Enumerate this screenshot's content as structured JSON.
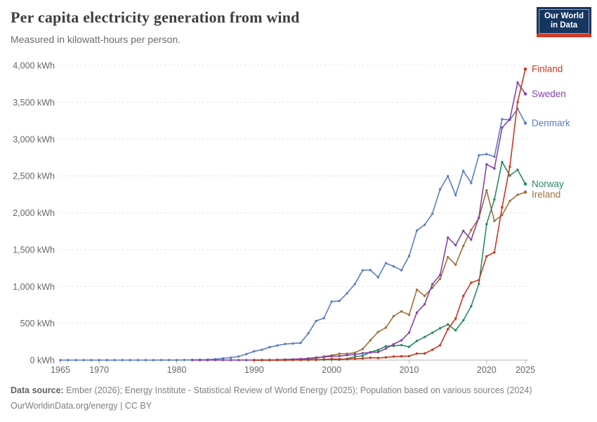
{
  "header": {
    "title": "Per capita electricity generation from wind",
    "subtitle": "Measured in kilowatt-hours per person.",
    "logo": {
      "line1": "Our World",
      "line2": "in Data",
      "bg_color": "#16355f",
      "accent_color": "#d23a2a"
    }
  },
  "chart_data": {
    "type": "line",
    "title": "Per capita electricity generation from wind",
    "ylabel": "kilowatt-hours per person",
    "xlabel": "",
    "grid": "horizontal-dashed",
    "legend_position": "end-of-line-labels-right",
    "x_range": [
      1965,
      2025
    ],
    "y_range": [
      0,
      4000
    ],
    "x_ticks": [
      1965,
      1970,
      1980,
      1990,
      2000,
      2010,
      2020,
      2025
    ],
    "y_ticks": [
      0,
      500,
      1000,
      1500,
      2000,
      2500,
      3000,
      3500,
      4000
    ],
    "y_tick_labels": [
      "0 kWh",
      "500 kWh",
      "1,000 kWh",
      "1,500 kWh",
      "2,000 kWh",
      "2,500 kWh",
      "3,000 kWh",
      "3,500 kWh",
      "4,000 kWh"
    ],
    "series": [
      {
        "name": "Finland",
        "color": "#c33a21",
        "start_year": 1990,
        "values": [
          0,
          0,
          0,
          1,
          1,
          2,
          2,
          3,
          4,
          10,
          15,
          13,
          12,
          18,
          23,
          32,
          29,
          36,
          49,
          52,
          54,
          89,
          90,
          141,
          201,
          420,
          563,
          871,
          1051,
          1086,
          1409,
          1462,
          2074,
          2624,
          3504,
          3950
        ]
      },
      {
        "name": "Sweden",
        "color": "#8345a5",
        "start_year": 1982,
        "values": [
          0,
          0,
          0,
          1,
          1,
          1,
          1,
          1,
          1,
          1,
          2,
          5,
          9,
          11,
          16,
          23,
          35,
          41,
          52,
          54,
          68,
          76,
          94,
          104,
          109,
          157,
          216,
          268,
          373,
          645,
          758,
          1030,
          1155,
          1664,
          1560,
          1755,
          1634,
          1936,
          2657,
          2601,
          3155,
          3270,
          3768,
          3613
        ]
      },
      {
        "name": "Denmark",
        "color": "#5c7dc0",
        "start_year": 1965,
        "values": [
          0,
          0,
          0,
          0,
          0,
          0,
          0,
          0,
          0,
          0,
          0,
          0,
          0,
          1,
          1,
          1,
          2,
          3,
          5,
          7,
          12,
          25,
          33,
          49,
          82,
          119,
          140,
          176,
          199,
          219,
          225,
          233,
          366,
          532,
          569,
          794,
          803,
          908,
          1032,
          1219,
          1222,
          1125,
          1316,
          1273,
          1220,
          1412,
          1758,
          1837,
          1986,
          2319,
          2497,
          2239,
          2569,
          2404,
          2780,
          2796,
          2760,
          3271,
          3260,
          3411,
          3217
        ]
      },
      {
        "name": "Norway",
        "color": "#2a8a5f",
        "start_year": 1990,
        "values": [
          0,
          0,
          0,
          1,
          1,
          2,
          2,
          2,
          3,
          6,
          7,
          6,
          17,
          48,
          57,
          108,
          137,
          189,
          193,
          203,
          180,
          261,
          313,
          372,
          432,
          484,
          405,
          540,
          731,
          1034,
          1846,
          2180,
          2689,
          2505,
          2582,
          2391
        ]
      },
      {
        "name": "Ireland",
        "color": "#a1703a",
        "start_year": 1990,
        "values": [
          0,
          0,
          1,
          1,
          2,
          4,
          4,
          14,
          24,
          50,
          64,
          86,
          87,
          100,
          150,
          269,
          383,
          441,
          596,
          662,
          615,
          956,
          872,
          983,
          1105,
          1398,
          1295,
          1549,
          1766,
          1927,
          2305,
          1889,
          1969,
          2159,
          2243,
          2280
        ]
      }
    ]
  },
  "footer": {
    "datasource_label": "Data source:",
    "datasource_text": " Ember (2026); Energy Institute - Statistical Review of World Energy (2025); Population based on various sources (2024)",
    "link": "OurWorldinData.org/energy",
    "separator": " | ",
    "license": "CC BY"
  }
}
